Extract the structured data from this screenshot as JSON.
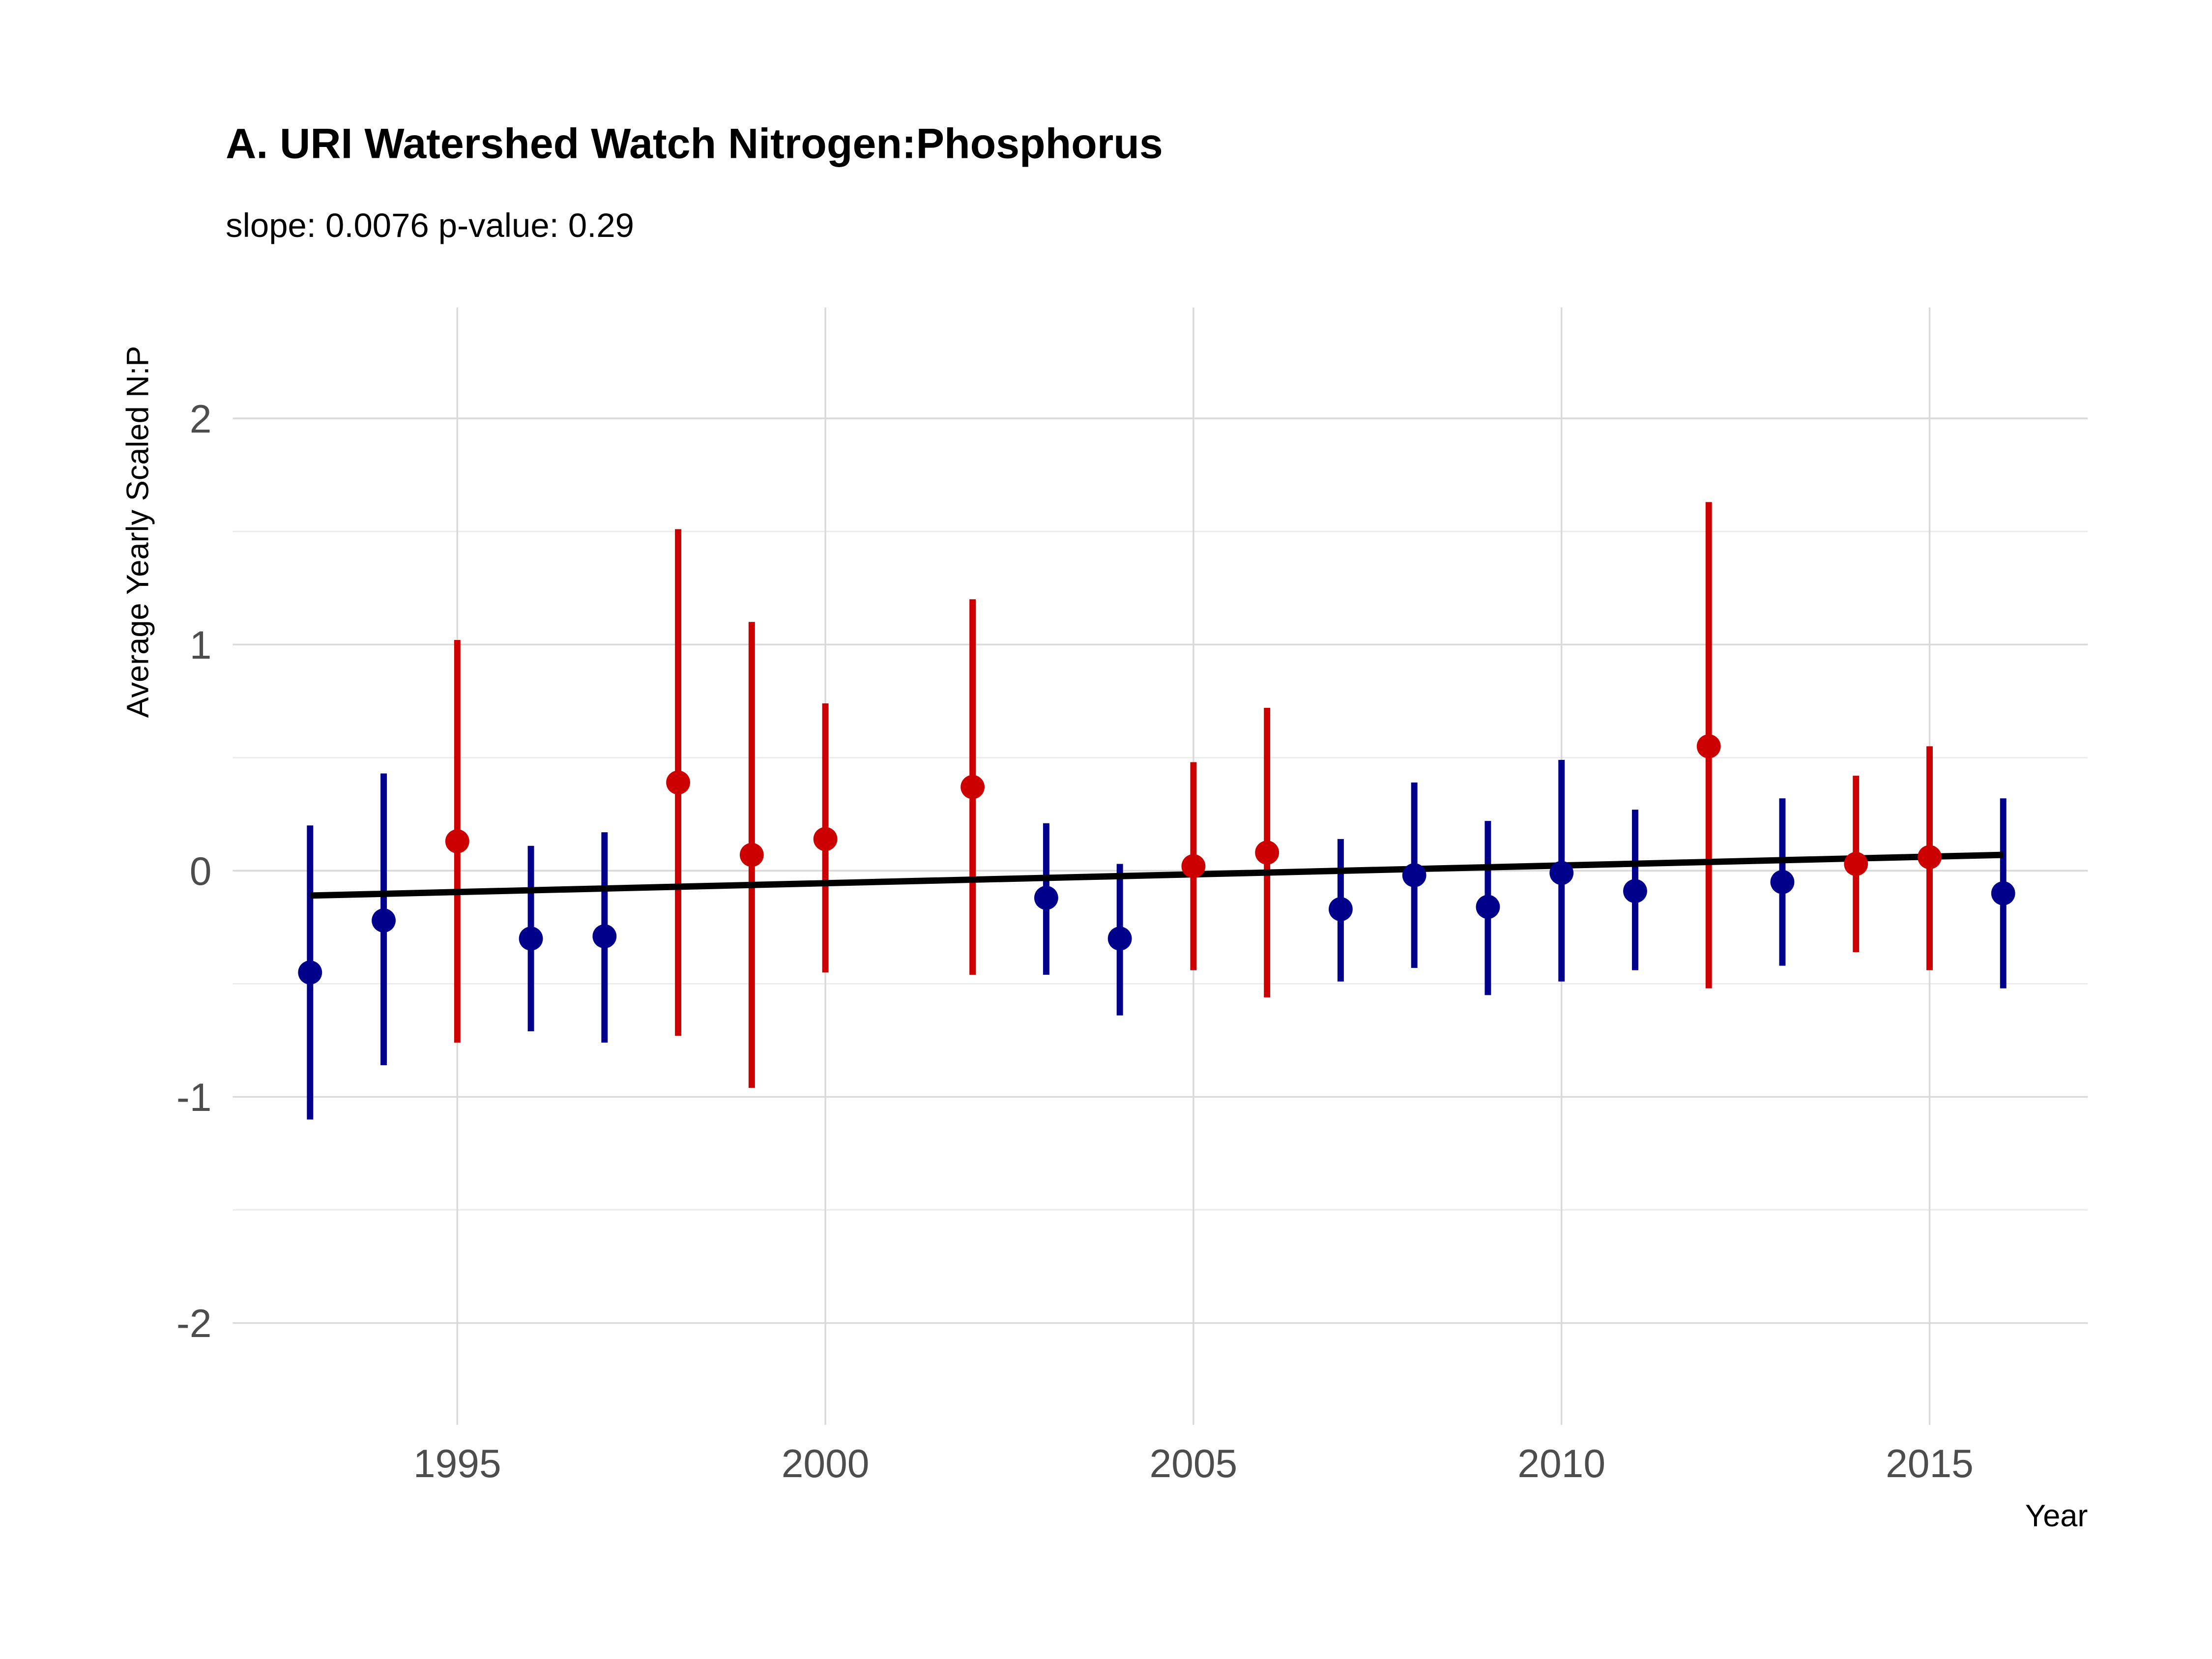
{
  "chart_data": {
    "type": "errorbar",
    "title": "A. URI Watershed Watch Nitrogen:Phosphorus",
    "subtitle": "slope: 0.0076 p-value: 0.29",
    "x_label": "Year",
    "y_label": "Average Yearly Scaled N:P",
    "xlim": [
      1991.95,
      2017.15
    ],
    "xticks": [
      1995,
      2000,
      2005,
      2010,
      2015
    ],
    "ylim": [
      -2.45,
      2.49
    ],
    "yticks": [
      -2,
      -1,
      0,
      1,
      2
    ],
    "yminor": [
      -1.5,
      -0.5,
      0.5,
      1.5
    ],
    "grid": true,
    "series": [
      {
        "color": "#cc0000",
        "x": [
          1995,
          1998,
          1999,
          2000,
          2002,
          2005,
          2006,
          2012,
          2014,
          2015
        ],
        "values": [
          0.13,
          0.39,
          0.07,
          0.14,
          0.37,
          0.02,
          0.08,
          0.55,
          0.03,
          0.06
        ],
        "upper": [
          1.02,
          1.51,
          1.1,
          0.74,
          1.2,
          0.48,
          0.72,
          1.63,
          0.42,
          0.55
        ],
        "lower": [
          -0.76,
          -0.73,
          -0.96,
          -0.45,
          -0.46,
          -0.44,
          -0.56,
          -0.52,
          -0.36,
          -0.44
        ]
      },
      {
        "color": "#00008b",
        "x": [
          1993,
          1994,
          1996,
          1997,
          2003,
          2004,
          2007,
          2008,
          2009,
          2010,
          2011,
          2013,
          2016
        ],
        "values": [
          -0.45,
          -0.22,
          -0.3,
          -0.29,
          -0.12,
          -0.3,
          -0.17,
          -0.02,
          -0.16,
          -0.01,
          -0.09,
          -0.05,
          -0.1
        ],
        "upper": [
          0.2,
          0.43,
          0.11,
          0.17,
          0.21,
          0.03,
          0.14,
          0.39,
          0.22,
          0.49,
          0.27,
          0.32,
          0.32
        ],
        "lower": [
          -1.1,
          -0.86,
          -0.71,
          -0.76,
          -0.46,
          -0.64,
          -0.49,
          -0.43,
          -0.55,
          -0.49,
          -0.44,
          -0.42,
          -0.52
        ]
      }
    ],
    "trend": {
      "color": "#000000",
      "x": [
        1993,
        2016
      ],
      "values": [
        -0.11,
        0.07
      ]
    }
  }
}
